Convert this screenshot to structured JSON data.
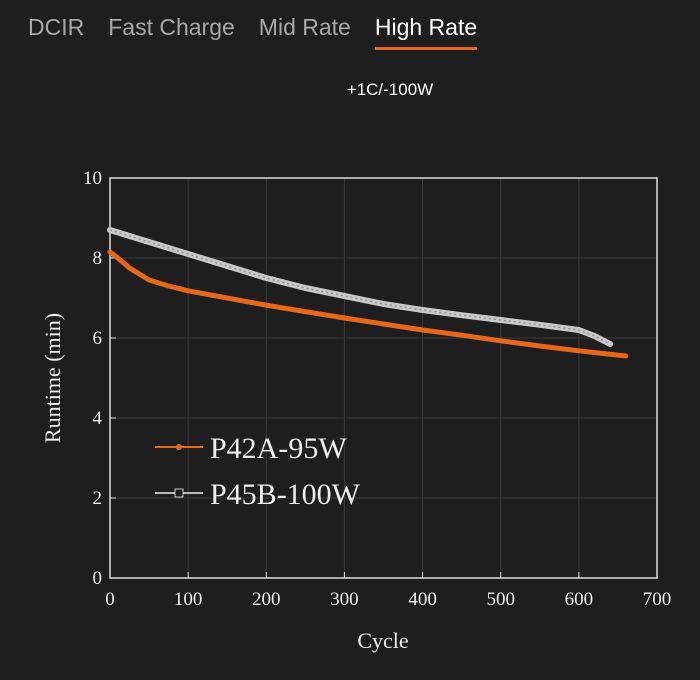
{
  "tabs": [
    {
      "label": "DCIR",
      "active": false
    },
    {
      "label": "Fast Charge",
      "active": false
    },
    {
      "label": "Mid Rate",
      "active": false
    },
    {
      "label": "High Rate",
      "active": true
    }
  ],
  "accent": "#e8681a",
  "subtitle": "+1C/-100W",
  "chart_data": {
    "type": "line",
    "xlabel": "Cycle",
    "ylabel": "Runtime (min)",
    "xlim": [
      0,
      700
    ],
    "ylim": [
      0,
      10
    ],
    "xticks": [
      0,
      100,
      200,
      300,
      400,
      500,
      600,
      700
    ],
    "yticks": [
      0,
      2,
      4,
      6,
      8,
      10
    ],
    "grid": true,
    "legend": "middle-left",
    "series": [
      {
        "name": "P42A-95W",
        "color": "#e8681a",
        "marker": "dot",
        "x": [
          0,
          10,
          25,
          50,
          75,
          100,
          150,
          200,
          250,
          300,
          350,
          400,
          450,
          500,
          550,
          600,
          660
        ],
        "y": [
          8.15,
          8.0,
          7.75,
          7.45,
          7.3,
          7.18,
          7.0,
          6.82,
          6.66,
          6.5,
          6.35,
          6.2,
          6.07,
          5.93,
          5.8,
          5.68,
          5.55
        ]
      },
      {
        "name": "P45B-100W",
        "color": "#c8c8c8",
        "marker": "square",
        "x": [
          0,
          50,
          100,
          150,
          200,
          250,
          300,
          350,
          400,
          450,
          500,
          550,
          600,
          620,
          640
        ],
        "y": [
          8.7,
          8.4,
          8.1,
          7.8,
          7.5,
          7.25,
          7.05,
          6.85,
          6.7,
          6.57,
          6.45,
          6.33,
          6.2,
          6.05,
          5.85
        ]
      }
    ]
  }
}
